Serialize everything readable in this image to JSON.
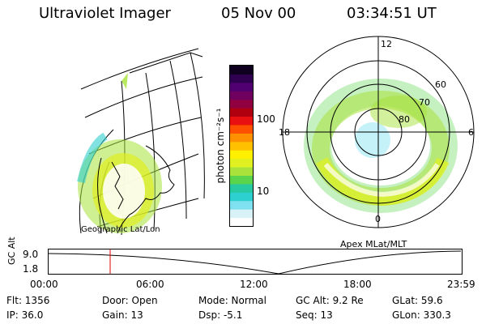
{
  "header": {
    "title": "Ultraviolet Imager",
    "date": "05 Nov 00",
    "time": "03:34:51 UT"
  },
  "geo_panel": {
    "label": "Geographic Lat/Lon"
  },
  "colorbar": {
    "unit_label": "photon cm⁻²s⁻¹",
    "ticks": [
      {
        "label": "100",
        "value": 100
      },
      {
        "label": "10",
        "value": 10
      }
    ],
    "colors": [
      "#ffffff",
      "#d9f2f7",
      "#7fe0f0",
      "#2ecfcf",
      "#26c9a0",
      "#5ad44a",
      "#a8e23a",
      "#e0f020",
      "#fff000",
      "#ffc000",
      "#ff9000",
      "#ff5000",
      "#e81010",
      "#b00010",
      "#900040",
      "#700060",
      "#500070",
      "#300050",
      "#100020"
    ]
  },
  "polar_panel": {
    "label": "Apex MLat/MLT",
    "mlt_labels": {
      "top": "12",
      "right": "6",
      "bottom": "0",
      "left": "18"
    },
    "lat_labels": [
      "60",
      "70",
      "80"
    ]
  },
  "timeline": {
    "axis_label": "GC Alt",
    "y_ticks": [
      "9.0",
      "1.8"
    ],
    "x_ticks": [
      "00:00",
      "06:00",
      "12:00",
      "18:00",
      "23:59"
    ],
    "current_time_fraction": 0.149,
    "marker_color": "#e00000"
  },
  "info": {
    "flt": "Flt: 1356",
    "ip": "IP: 36.0",
    "door": "Door: Open",
    "gain": "Gain: 13",
    "mode": "Mode: Normal",
    "dsp": "Dsp:    -5.1",
    "gcalt": "GC Alt: 9.2 Re",
    "seq": "Seq: 13",
    "glat": "GLat:  59.6",
    "glon": "GLon: 330.3"
  }
}
